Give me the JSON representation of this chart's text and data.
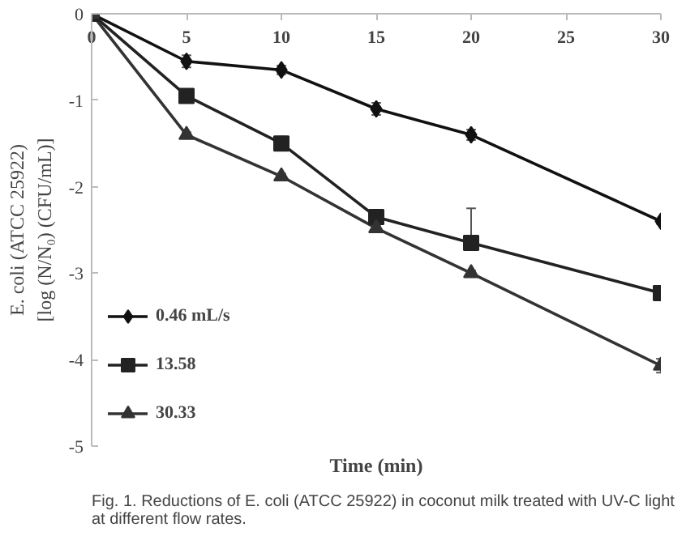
{
  "chart_data": {
    "type": "line",
    "xlabel": "Time (min)",
    "ylabel": "E. coli (ATCC 25922)\n[log (N/N₀) (CFU/mL)]",
    "annotations": [
      "Fig. 1. Reductions of E. coli (ATCC 25922) in coconut milk treated with UV-C light at different flow rates."
    ],
    "x": [
      0,
      5,
      10,
      15,
      20,
      30
    ],
    "xlim": [
      0,
      30
    ],
    "xticks": [
      0,
      5,
      10,
      15,
      20,
      25,
      30
    ],
    "ylim": [
      -5,
      0
    ],
    "yticks": [
      -5,
      -4,
      -3,
      -2,
      -1,
      0
    ],
    "grid": false,
    "legend": "bottom left",
    "line_style": "solid",
    "series": [
      {
        "name": "0.46 mL/s",
        "color": "#111111",
        "marker": "diamond",
        "values": [
          0,
          -0.55,
          -0.65,
          -1.1,
          -1.4,
          -2.4
        ],
        "errors": [
          null,
          0.07,
          0.05,
          0.07,
          0.06,
          0.03
        ]
      },
      {
        "name": "13.58",
        "color": "#222222",
        "marker": "square",
        "values": [
          0,
          -0.95,
          -1.5,
          -2.35,
          -2.65,
          -3.23
        ],
        "errors": [
          null,
          0.06,
          0.08,
          0.05,
          [
            -2.7,
            -2.25
          ],
          0.03
        ]
      },
      {
        "name": "30.33",
        "color": "#333333",
        "marker": "triangle",
        "values": [
          0,
          -1.4,
          -1.88,
          -2.48,
          -3.0,
          -4.07
        ],
        "errors": [
          null,
          0.03,
          0.03,
          0.04,
          0.03,
          0.08
        ]
      }
    ]
  }
}
